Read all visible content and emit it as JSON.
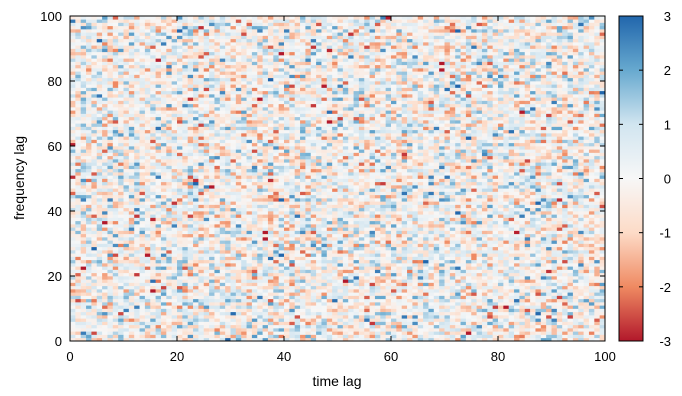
{
  "chart_data": {
    "type": "heatmap",
    "title": "",
    "xlabel": "time lag",
    "ylabel": "frequency lag",
    "xlim": [
      0,
      100
    ],
    "ylim": [
      0,
      100
    ],
    "x_ticks": [
      "0",
      "20",
      "40",
      "60",
      "80",
      "100"
    ],
    "y_ticks": [
      "0",
      "20",
      "40",
      "60",
      "80",
      "100"
    ],
    "grid_columns": 100,
    "grid_rows": 100,
    "values_note": "",
    "value_distribution": "random noise, approximately standard normal, centered at 0",
    "colorbar": {
      "range": [
        -3,
        3
      ],
      "ticks": [
        "3",
        "2",
        "1",
        "0",
        "-1",
        "-2",
        "-3"
      ],
      "colormap": "RdBu",
      "colors": [
        "#b2182b",
        "#ef8a62",
        "#fddbc7",
        "#f7f7f7",
        "#d1e5f0",
        "#67a9cf",
        "#2166ac"
      ]
    },
    "grid": false,
    "legend": "right"
  }
}
